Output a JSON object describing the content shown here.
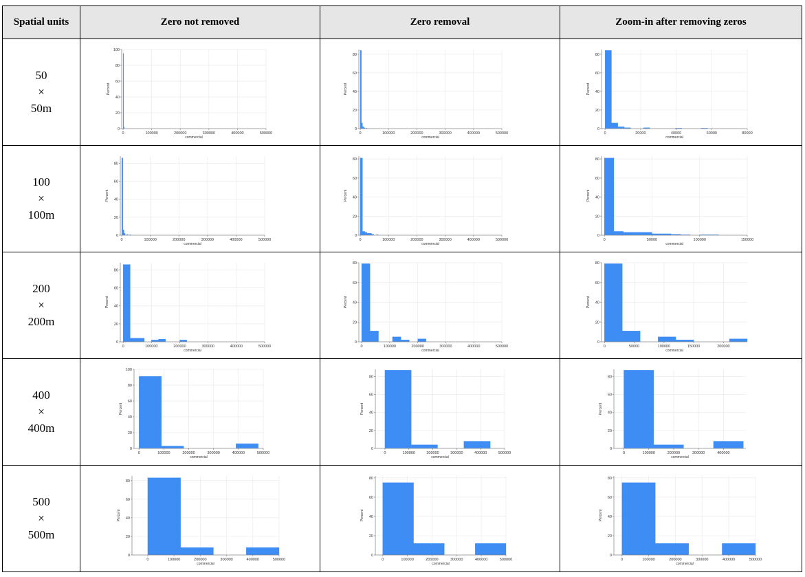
{
  "table": {
    "headers": [
      "Spatial units",
      "Zero  not  removed",
      "Zero  removal",
      "Zoom-in  after  removing  zeros"
    ],
    "rows": [
      {
        "top": "50",
        "times": "×",
        "bottom": "50m"
      },
      {
        "top": "100",
        "times": "×",
        "bottom": "100m"
      },
      {
        "top": "200",
        "times": "×",
        "bottom": "200m"
      },
      {
        "top": "400",
        "times": "×",
        "bottom": "400m"
      },
      {
        "top": "500",
        "times": "×",
        "bottom": "500m"
      }
    ]
  },
  "chart_data": [
    {
      "type": "bar",
      "row": "50",
      "column": "Zero not removed",
      "xlabel": "commercial",
      "ylabel": "Percent",
      "xlim": [
        -5000,
        500000
      ],
      "ylim": [
        0,
        100
      ],
      "xticks": [
        0,
        100000,
        200000,
        300000,
        400000,
        500000
      ],
      "xtick_labels": [
        "0",
        "100000",
        "200000",
        "300000",
        "400000",
        "500000"
      ],
      "yticks": [
        0,
        20,
        40,
        60,
        80,
        100
      ],
      "ytick_labels": [
        "0",
        "20",
        "40",
        "60",
        "80",
        "100"
      ],
      "bins": [
        [
          0,
          2000,
          95
        ],
        [
          2000,
          4000,
          2
        ]
      ]
    },
    {
      "type": "bar",
      "row": "50",
      "column": "Zero removal",
      "xlabel": "commercial",
      "ylabel": "Percent",
      "xlim": [
        -5000,
        500000
      ],
      "ylim": [
        0,
        85
      ],
      "xticks": [
        0,
        100000,
        200000,
        300000,
        400000,
        500000
      ],
      "xtick_labels": [
        "0",
        "100000",
        "200000",
        "300000",
        "400000",
        "500000"
      ],
      "yticks": [
        0,
        20,
        40,
        60,
        80
      ],
      "ytick_labels": [
        "0",
        "20",
        "40",
        "60",
        "80"
      ],
      "bins": [
        [
          0,
          4000,
          84
        ],
        [
          4000,
          8000,
          6
        ],
        [
          8000,
          12000,
          2
        ],
        [
          12000,
          16000,
          1
        ],
        [
          20000,
          24000,
          0.5
        ]
      ]
    },
    {
      "type": "bar",
      "row": "50",
      "column": "Zoom-in after removing zeros",
      "xlabel": "commercial",
      "ylabel": "Percent",
      "xlim": [
        -2000,
        80000
      ],
      "ylim": [
        0,
        85
      ],
      "xticks": [
        0,
        20000,
        40000,
        60000,
        80000
      ],
      "xtick_labels": [
        "0",
        "20000",
        "40000",
        "60000",
        "80000"
      ],
      "yticks": [
        0,
        20,
        40,
        60,
        80
      ],
      "ytick_labels": [
        "0",
        "20",
        "40",
        "60",
        "80"
      ],
      "bins": [
        [
          0,
          3600,
          84
        ],
        [
          3600,
          7200,
          6
        ],
        [
          7200,
          10800,
          2
        ],
        [
          10800,
          14400,
          1
        ],
        [
          21600,
          25200,
          1
        ],
        [
          39600,
          43200,
          0.5
        ],
        [
          54000,
          57600,
          0.5
        ]
      ]
    },
    {
      "type": "bar",
      "row": "100",
      "column": "Zero not removed",
      "xlabel": "commercial",
      "ylabel": "Percent",
      "xlim": [
        -5000,
        500000
      ],
      "ylim": [
        0,
        88
      ],
      "xticks": [
        0,
        100000,
        200000,
        300000,
        400000,
        500000
      ],
      "xtick_labels": [
        "0",
        "100000",
        "200000",
        "300000",
        "400000",
        "500000"
      ],
      "yticks": [
        0,
        20,
        40,
        60,
        80
      ],
      "ytick_labels": [
        "0",
        "20",
        "40",
        "60",
        "80"
      ],
      "bins": [
        [
          0,
          4000,
          86
        ],
        [
          4000,
          8000,
          6
        ],
        [
          8000,
          12000,
          2
        ],
        [
          18000,
          22000,
          1
        ],
        [
          28000,
          32000,
          0.5
        ]
      ]
    },
    {
      "type": "bar",
      "row": "100",
      "column": "Zero removal",
      "xlabel": "commercial",
      "ylabel": "Percent",
      "xlim": [
        -5000,
        500000
      ],
      "ylim": [
        0,
        83
      ],
      "xticks": [
        0,
        100000,
        200000,
        300000,
        400000,
        500000
      ],
      "xtick_labels": [
        "0",
        "100000",
        "200000",
        "300000",
        "400000",
        "500000"
      ],
      "yticks": [
        0,
        20,
        40,
        60,
        80
      ],
      "ytick_labels": [
        "0",
        "20",
        "40",
        "60",
        "80"
      ],
      "bins": [
        [
          0,
          8000,
          81
        ],
        [
          8000,
          16000,
          4
        ],
        [
          16000,
          24000,
          3
        ],
        [
          24000,
          32000,
          2
        ],
        [
          32000,
          40000,
          2
        ],
        [
          40000,
          48000,
          1
        ],
        [
          56000,
          64000,
          0.5
        ]
      ]
    },
    {
      "type": "bar",
      "row": "100",
      "column": "Zoom-in after removing zeros",
      "xlabel": "commercial",
      "ylabel": "Percent",
      "xlim": [
        -3000,
        150000
      ],
      "ylim": [
        0,
        83
      ],
      "xticks": [
        0,
        50000,
        100000,
        150000
      ],
      "xtick_labels": [
        "0",
        "50000",
        "100000",
        "150000"
      ],
      "yticks": [
        0,
        20,
        40,
        60,
        80
      ],
      "ytick_labels": [
        "0",
        "20",
        "40",
        "60",
        "80"
      ],
      "bins": [
        [
          0,
          10000,
          81
        ],
        [
          10000,
          20000,
          4
        ],
        [
          20000,
          30000,
          3
        ],
        [
          30000,
          40000,
          3
        ],
        [
          40000,
          50000,
          3
        ],
        [
          50000,
          60000,
          1.5
        ],
        [
          60000,
          70000,
          1.5
        ],
        [
          70000,
          80000,
          1
        ],
        [
          80000,
          90000,
          0.5
        ],
        [
          100000,
          110000,
          0.5
        ],
        [
          110000,
          120000,
          0.5
        ]
      ]
    },
    {
      "type": "bar",
      "row": "200",
      "column": "Zero not removed",
      "xlabel": "commercial",
      "ylabel": "Percent",
      "xlim": [
        -10000,
        500000
      ],
      "ylim": [
        0,
        88
      ],
      "xticks": [
        0,
        100000,
        200000,
        300000,
        400000,
        500000
      ],
      "xtick_labels": [
        "0",
        "100000",
        "200000",
        "300000",
        "400000",
        "500000"
      ],
      "yticks": [
        0,
        20,
        40,
        60,
        80
      ],
      "ytick_labels": [
        "0",
        "20",
        "40",
        "60",
        "80"
      ],
      "bins": [
        [
          0,
          25000,
          86
        ],
        [
          25000,
          50000,
          4
        ],
        [
          50000,
          75000,
          4
        ],
        [
          100000,
          125000,
          2
        ],
        [
          125000,
          150000,
          3
        ],
        [
          200000,
          225000,
          2
        ]
      ]
    },
    {
      "type": "bar",
      "row": "200",
      "column": "Zero removal",
      "xlabel": "commercial",
      "ylabel": "Percent",
      "xlim": [
        -10000,
        500000
      ],
      "ylim": [
        0,
        80
      ],
      "xticks": [
        0,
        100000,
        200000,
        300000,
        400000,
        500000
      ],
      "xtick_labels": [
        "0",
        "100000",
        "200000",
        "300000",
        "400000",
        "500000"
      ],
      "yticks": [
        0,
        20,
        40,
        60,
        80
      ],
      "ytick_labels": [
        "0",
        "20",
        "40",
        "60",
        "80"
      ],
      "bins": [
        [
          0,
          30000,
          79
        ],
        [
          30000,
          60000,
          11
        ],
        [
          110000,
          140000,
          5
        ],
        [
          140000,
          170000,
          2
        ],
        [
          200000,
          230000,
          3
        ]
      ]
    },
    {
      "type": "bar",
      "row": "200",
      "column": "Zoom-in after removing zeros",
      "xlabel": "commercial",
      "ylabel": "Percent",
      "xlim": [
        -5000,
        240000
      ],
      "ylim": [
        0,
        80
      ],
      "xticks": [
        0,
        50000,
        100000,
        150000,
        200000
      ],
      "xtick_labels": [
        "0",
        "50000",
        "100000",
        "150000",
        "200000"
      ],
      "yticks": [
        0,
        20,
        40,
        60,
        80
      ],
      "ytick_labels": [
        "0",
        "20",
        "40",
        "60",
        "80"
      ],
      "bins": [
        [
          0,
          30000,
          79
        ],
        [
          30000,
          60000,
          11
        ],
        [
          90000,
          120000,
          5
        ],
        [
          120000,
          150000,
          2
        ],
        [
          210000,
          240000,
          3
        ]
      ]
    },
    {
      "type": "bar",
      "row": "400",
      "column": "Zero not removed",
      "xlabel": "commercial",
      "ylabel": "Percent",
      "xlim": [
        -20000,
        500000
      ],
      "ylim": [
        0,
        100
      ],
      "xticks": [
        0,
        100000,
        200000,
        300000,
        400000,
        500000
      ],
      "xtick_labels": [
        "0",
        "100000",
        "200000",
        "300000",
        "400000",
        "500000"
      ],
      "yticks": [
        0,
        20,
        40,
        60,
        80,
        100
      ],
      "ytick_labels": [
        "0",
        "20",
        "40",
        "60",
        "80",
        "100"
      ],
      "bins": [
        [
          0,
          90000,
          91
        ],
        [
          90000,
          180000,
          3
        ],
        [
          390000,
          480000,
          6
        ]
      ]
    },
    {
      "type": "bar",
      "row": "400",
      "column": "Zero removal",
      "xlabel": "commercial",
      "ylabel": "Percent",
      "xlim": [
        -40000,
        500000
      ],
      "ylim": [
        0,
        88
      ],
      "xticks": [
        0,
        100000,
        200000,
        300000,
        400000,
        500000
      ],
      "xtick_labels": [
        "0",
        "100000",
        "200000",
        "300000",
        "400000",
        "500000"
      ],
      "yticks": [
        0,
        20,
        40,
        60,
        80
      ],
      "ytick_labels": [
        "0",
        "20",
        "40",
        "60",
        "80"
      ],
      "bins": [
        [
          0,
          110000,
          87
        ],
        [
          110000,
          220000,
          4
        ],
        [
          330000,
          440000,
          8
        ]
      ]
    },
    {
      "type": "bar",
      "row": "400",
      "column": "Zoom-in after removing zeros",
      "xlabel": "commercial",
      "ylabel": "Percent",
      "xlim": [
        -40000,
        490000
      ],
      "ylim": [
        0,
        88
      ],
      "xticks": [
        0,
        100000,
        200000,
        300000,
        400000
      ],
      "xtick_labels": [
        "0",
        "100000",
        "200000",
        "300000",
        "400000"
      ],
      "yticks": [
        0,
        20,
        40,
        60,
        80
      ],
      "ytick_labels": [
        "0",
        "20",
        "40",
        "60",
        "80"
      ],
      "bins": [
        [
          0,
          120000,
          87
        ],
        [
          120000,
          240000,
          4
        ],
        [
          360000,
          480000,
          8
        ]
      ]
    },
    {
      "type": "bar",
      "row": "500",
      "column": "Zero not removed",
      "xlabel": "commercial",
      "ylabel": "Percent",
      "xlim": [
        -60000,
        500000
      ],
      "ylim": [
        0,
        85
      ],
      "xticks": [
        0,
        100000,
        200000,
        300000,
        400000,
        500000
      ],
      "xtick_labels": [
        "0",
        "100000",
        "200000",
        "300000",
        "400000",
        "500000"
      ],
      "yticks": [
        0,
        20,
        40,
        60,
        80
      ],
      "ytick_labels": [
        "0",
        "20",
        "40",
        "60",
        "80"
      ],
      "bins": [
        [
          0,
          125000,
          83
        ],
        [
          125000,
          250000,
          8
        ],
        [
          375000,
          500000,
          8
        ]
      ]
    },
    {
      "type": "bar",
      "row": "500",
      "column": "Zero removal",
      "xlabel": "commercial",
      "ylabel": "Percent",
      "xlim": [
        -30000,
        500000
      ],
      "ylim": [
        0,
        82
      ],
      "xticks": [
        0,
        100000,
        200000,
        300000,
        400000,
        500000
      ],
      "xtick_labels": [
        "0",
        "100000",
        "200000",
        "300000",
        "400000",
        "500000"
      ],
      "yticks": [
        0,
        20,
        40,
        60,
        80
      ],
      "ytick_labels": [
        "0",
        "20",
        "40",
        "60",
        "80"
      ],
      "bins": [
        [
          0,
          125000,
          75
        ],
        [
          125000,
          250000,
          12
        ],
        [
          375000,
          500000,
          12
        ]
      ]
    },
    {
      "type": "bar",
      "row": "500",
      "column": "Zoom-in after removing zeros",
      "xlabel": "commercial",
      "ylabel": "Percent",
      "xlim": [
        -30000,
        500000
      ],
      "ylim": [
        0,
        82
      ],
      "xticks": [
        0,
        100000,
        200000,
        300000,
        400000,
        500000
      ],
      "xtick_labels": [
        "0",
        "100000",
        "200000",
        "300000",
        "400000",
        "500000"
      ],
      "yticks": [
        0,
        20,
        40,
        60,
        80
      ],
      "ytick_labels": [
        "0",
        "20",
        "40",
        "60",
        "80"
      ],
      "bins": [
        [
          0,
          125000,
          75
        ],
        [
          125000,
          250000,
          12
        ],
        [
          375000,
          500000,
          12
        ]
      ]
    }
  ]
}
